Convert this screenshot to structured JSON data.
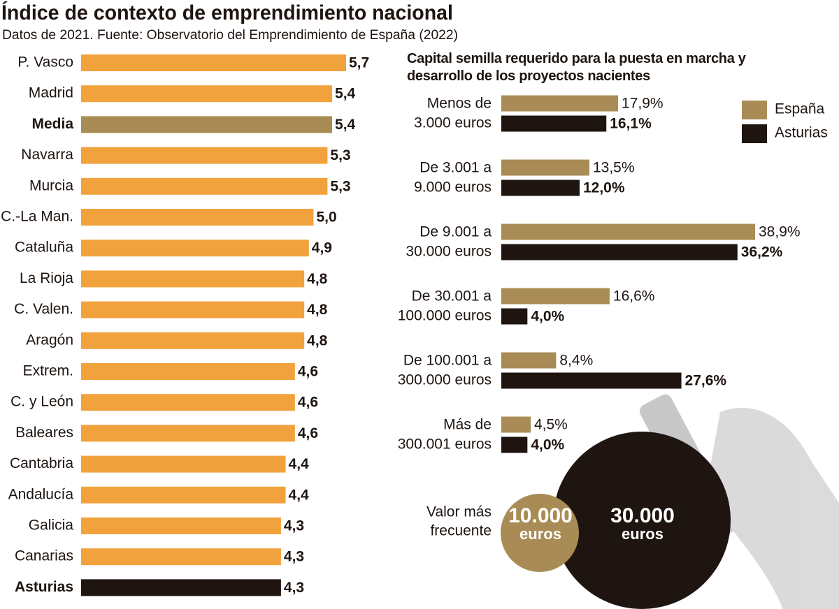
{
  "chart_data": [
    {
      "type": "hbar",
      "title": "Índice de contexto de emprendimiento nacional",
      "subtitle": "Datos de 2021. Fuente: Observatorio del Emprendimiento de España (2022)",
      "categories": [
        "P. Vasco",
        "Madrid",
        "Media",
        "Navarra",
        "Murcia",
        "C.-La Man.",
        "Cataluña",
        "La Rioja",
        "C. Valen.",
        "Aragón",
        "Extrem.",
        "C. y León",
        "Baleares",
        "Cantabria",
        "Andalucía",
        "Galicia",
        "Canarias",
        "Asturias"
      ],
      "values": [
        5.7,
        5.4,
        5.4,
        5.3,
        5.3,
        5.0,
        4.9,
        4.8,
        4.8,
        4.8,
        4.6,
        4.6,
        4.6,
        4.4,
        4.4,
        4.3,
        4.3,
        4.3
      ],
      "value_labels": [
        "5,7",
        "5,4",
        "5,4",
        "5,3",
        "5,3",
        "5,0",
        "4,9",
        "4,8",
        "4,8",
        "4,8",
        "4,6",
        "4,6",
        "4,6",
        "4,4",
        "4,4",
        "4,3",
        "4,3",
        "4,3"
      ],
      "color": "#f2a23c",
      "bar_colors": [
        "#f2a23c",
        "#f2a23c",
        "#a98c55",
        "#f2a23c",
        "#f2a23c",
        "#f2a23c",
        "#f2a23c",
        "#f2a23c",
        "#f2a23c",
        "#f2a23c",
        "#f2a23c",
        "#f2a23c",
        "#f2a23c",
        "#f2a23c",
        "#f2a23c",
        "#f2a23c",
        "#f2a23c",
        "#1e1410"
      ]
    },
    {
      "type": "grouped_hbar",
      "title": "Capital semilla requerido para la puesta en marcha y desarrollo de los proyectos nacientes",
      "categories": [
        "Menos de\n3.000 euros",
        "De 3.001 a\n9.000 euros",
        "De 9.001 a\n30.000 euros",
        "De 30.001 a\n100.000 euros",
        "De 100.001 a\n300.000 euros",
        "Más de\n300.001 euros"
      ],
      "series": [
        {
          "name": "España",
          "color": "#a98c55",
          "values": [
            17.9,
            13.5,
            38.9,
            16.6,
            8.4,
            4.5
          ],
          "value_labels": [
            "17,9%",
            "13,5%",
            "38,9%",
            "16,6%",
            "8,4%",
            "4,5%"
          ]
        },
        {
          "name": "Asturias",
          "color": "#1e1410",
          "values": [
            16.1,
            12.0,
            36.2,
            4.0,
            27.6,
            4.0
          ],
          "value_labels": [
            "16,1%",
            "12,0%",
            "36,2%",
            "4,0%",
            "27,6%",
            "4,0%"
          ]
        }
      ],
      "legend": "upper right",
      "annotation": {
        "label": "Valor más\nfrecuente",
        "values": [
          {
            "text": "10.000",
            "unit": "euros"
          },
          {
            "text": "30.000",
            "unit": "euros"
          }
        ]
      }
    }
  ]
}
